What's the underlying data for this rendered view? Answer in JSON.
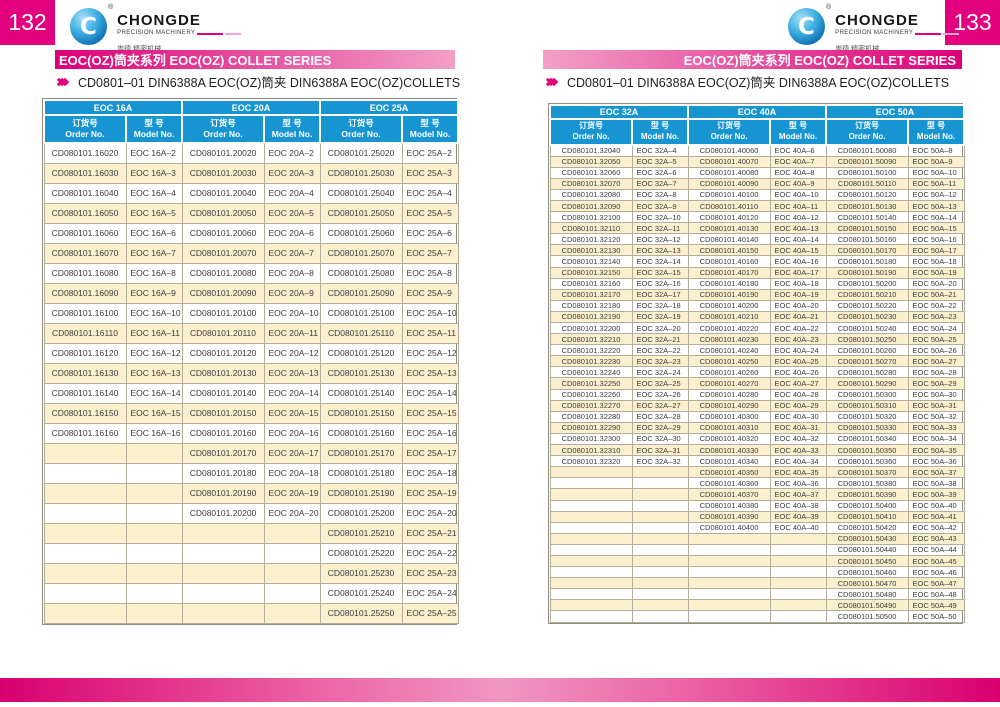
{
  "colors": {
    "magenta": "#e3007e",
    "pink_light": "#f2a0c6",
    "header_blue": "#1795d2",
    "row_cream": "#fbf0cd",
    "grid_gray": "#b3ae9c"
  },
  "logo": {
    "name": "CHONGDE",
    "registered": "®",
    "tagline": "PRECISION MACHINERY",
    "chinese": "崇德 精密机械"
  },
  "series_title": "EOC(OZ)筒夹系列  EOC(OZ) COLLET SERIES",
  "subtitle": "CD0801–01 DIN6388A EOC(OZ)筒夹 DIN6388A EOC(OZ)COLLETS",
  "col_headers": {
    "order_cn": "订货号",
    "order_en": "Order No.",
    "model_cn": "型 号",
    "model_en": "Model  No."
  },
  "pages": [
    {
      "page_number": "132",
      "groups": [
        "EOC 16A",
        "EOC 20A",
        "EOC 25A"
      ],
      "rows": [
        [
          "CD080101.16020",
          "EOC 16A–2",
          "CD080101.20020",
          "EOC 20A–2",
          "CD080101.25020",
          "EOC 25A–2"
        ],
        [
          "CD080101.16030",
          "EOC 16A–3",
          "CD080101.20030",
          "EOC 20A–3",
          "CD080101.25030",
          "EOC 25A–3"
        ],
        [
          "CD080101.16040",
          "EOC 16A–4",
          "CD080101.20040",
          "EOC 20A–4",
          "CD080101.25040",
          "EOC 25A–4"
        ],
        [
          "CD080101.16050",
          "EOC 16A–5",
          "CD080101.20050",
          "EOC 20A–5",
          "CD080101.25050",
          "EOC 25A–5"
        ],
        [
          "CD080101.16060",
          "EOC 16A–6",
          "CD080101.20060",
          "EOC 20A–6",
          "CD080101.25060",
          "EOC 25A–6"
        ],
        [
          "CD080101.16070",
          "EOC 16A–7",
          "CD080101.20070",
          "EOC 20A–7",
          "CD080101.25070",
          "EOC 25A–7"
        ],
        [
          "CD080101.16080",
          "EOC 16A–8",
          "CD080101.20080",
          "EOC 20A–8",
          "CD080101.25080",
          "EOC 25A–8"
        ],
        [
          "CD080101.16090",
          "EOC 16A–9",
          "CD080101.20090",
          "EOC 20A–9",
          "CD080101.25090",
          "EOC 25A–9"
        ],
        [
          "CD080101.16100",
          "EOC 16A–10",
          "CD080101.20100",
          "EOC 20A–10",
          "CD080101.25100",
          "EOC 25A–10"
        ],
        [
          "CD080101.16110",
          "EOC 16A–11",
          "CD080101.20110",
          "EOC 20A–11",
          "CD080101.25110",
          "EOC 25A–11"
        ],
        [
          "CD080101.16120",
          "EOC 16A–12",
          "CD080101.20120",
          "EOC 20A–12",
          "CD080101.25120",
          "EOC 25A–12"
        ],
        [
          "CD080101.16130",
          "EOC 16A–13",
          "CD080101.20130",
          "EOC 20A–13",
          "CD080101.25130",
          "EOC 25A–13"
        ],
        [
          "CD080101.16140",
          "EOC 16A–14",
          "CD080101.20140",
          "EOC 20A–14",
          "CD080101.25140",
          "EOC 25A–14"
        ],
        [
          "CD080101.16150",
          "EOC 16A–15",
          "CD080101.20150",
          "EOC 20A–15",
          "CD080101.25150",
          "EOC 25A–15"
        ],
        [
          "CD080101.16160",
          "EOC 16A–16",
          "CD080101.20160",
          "EOC 20A–16",
          "CD080101.25160",
          "EOC 25A–16"
        ],
        [
          "",
          "",
          "CD080101.20170",
          "EOC 20A–17",
          "CD080101.25170",
          "EOC 25A–17"
        ],
        [
          "",
          "",
          "CD080101.20180",
          "EOC 20A–18",
          "CD080101.25180",
          "EOC 25A–18"
        ],
        [
          "",
          "",
          "CD080101.20190",
          "EOC 20A–19",
          "CD080101.25190",
          "EOC 25A–19"
        ],
        [
          "",
          "",
          "CD080101.20200",
          "EOC 20A–20",
          "CD080101.25200",
          "EOC 25A–20"
        ],
        [
          "",
          "",
          "",
          "",
          "CD080101.25210",
          "EOC 25A–21"
        ],
        [
          "",
          "",
          "",
          "",
          "CD080101.25220",
          "EOC 25A–22"
        ],
        [
          "",
          "",
          "",
          "",
          "CD080101.25230",
          "EOC 25A–23"
        ],
        [
          "",
          "",
          "",
          "",
          "CD080101.25240",
          "EOC 25A–24"
        ],
        [
          "",
          "",
          "",
          "",
          "CD080101.25250",
          "EOC 25A–25"
        ]
      ]
    },
    {
      "page_number": "133",
      "groups": [
        "EOC 32A",
        "EOC 40A",
        "EOC 50A"
      ],
      "rows": [
        [
          "CD080101.32040",
          "EOC 32A–4",
          "CD080101.40060",
          "EOC 40A–6",
          "CD080101.50080",
          "EOC 50A–8"
        ],
        [
          "CD080101.32050",
          "EOC 32A–5",
          "CD080101.40070",
          "EOC 40A–7",
          "CD080101.50090",
          "EOC 50A–9"
        ],
        [
          "CD080101.32060",
          "EOC 32A–6",
          "CD080101.40080",
          "EOC 40A–8",
          "CD080101.50100",
          "EOC 50A–10"
        ],
        [
          "CD080101.32070",
          "EOC 32A–7",
          "CD080101.40090",
          "EOC 40A–9",
          "CD080101.50110",
          "EOC 50A–11"
        ],
        [
          "CD080101.32080",
          "EOC 32A–8",
          "CD080101.40100",
          "EOC 40A–10",
          "CD080101.50120",
          "EOC 50A–12"
        ],
        [
          "CD080101.32090",
          "EOC 32A–9",
          "CD080101.40110",
          "EOC 40A–11",
          "CD080101.50130",
          "EOC 50A–13"
        ],
        [
          "CD080101.32100",
          "EOC 32A–10",
          "CD080101.40120",
          "EOC 40A–12",
          "CD080101.50140",
          "EOC 50A–14"
        ],
        [
          "CD080101.32110",
          "EOC 32A–11",
          "CD080101.40130",
          "EOC 40A–13",
          "CD080101.50150",
          "EOC 50A–15"
        ],
        [
          "CD080101.32120",
          "EOC 32A–12",
          "CD080101.40140",
          "EOC 40A–14",
          "CD080101.50160",
          "EOC 50A–16"
        ],
        [
          "CD080101.32130",
          "EOC 32A–13",
          "CD080101.40150",
          "EOC 40A–15",
          "CD080101.50170",
          "EOC 50A–17"
        ],
        [
          "CD080101.32140",
          "EOC 32A–14",
          "CD080101.40160",
          "EOC 40A–16",
          "CD080101.50180",
          "EOC 50A–18"
        ],
        [
          "CD080101.32150",
          "EOC 32A–15",
          "CD080101.40170",
          "EOC 40A–17",
          "CD080101.50190",
          "EOC 50A–19"
        ],
        [
          "CD080101.32160",
          "EOC 32A–16",
          "CD080101.40180",
          "EOC 40A–18",
          "CD080101.50200",
          "EOC 50A–20"
        ],
        [
          "CD080101.32170",
          "EOC 32A–17",
          "CD080101.40190",
          "EOC 40A–19",
          "CD080101.50210",
          "EOC 50A–21"
        ],
        [
          "CD080101.32180",
          "EOC 32A–18",
          "CD080101.40200",
          "EOC 40A–20",
          "CD080101.50220",
          "EOC 50A–22"
        ],
        [
          "CD080101.32190",
          "EOC 32A–19",
          "CD080101.40210",
          "EOC 40A–21",
          "CD080101.50230",
          "EOC 50A–23"
        ],
        [
          "CD080101.32200",
          "EOC 32A–20",
          "CD080101.40220",
          "EOC 40A–22",
          "CD080101.50240",
          "EOC 50A–24"
        ],
        [
          "CD080101.32210",
          "EOC 32A–21",
          "CD080101.40230",
          "EOC 40A–23",
          "CD080101.50250",
          "EOC 50A–25"
        ],
        [
          "CD080101.32220",
          "EOC 32A–22",
          "CD080101.40240",
          "EOC 40A–24",
          "CD080101.50260",
          "EOC 50A–26"
        ],
        [
          "CD080101.32230",
          "EOC 32A–23",
          "CD080101.40250",
          "EOC 40A–25",
          "CD080101.50270",
          "EOC 50A–27"
        ],
        [
          "CD080101.32240",
          "EOC 32A–24",
          "CD080101.40260",
          "EOC 40A–26",
          "CD080101.50280",
          "EOC 50A–28"
        ],
        [
          "CD080101.32250",
          "EOC 32A–25",
          "CD080101.40270",
          "EOC 40A–27",
          "CD080101.50290",
          "EOC 50A–29"
        ],
        [
          "CD080101.32260",
          "EOC 32A–26",
          "CD080101.40280",
          "EOC 40A–28",
          "CD080101.50300",
          "EOC 50A–30"
        ],
        [
          "CD080101.32270",
          "EOC 32A–27",
          "CD080101.40290",
          "EOC 40A–29",
          "CD080101.50310",
          "EOC 50A–31"
        ],
        [
          "CD080101.32280",
          "EOC 32A–28",
          "CD080101.40300",
          "EOC 40A–30",
          "CD080101.50320",
          "EOC 50A–32"
        ],
        [
          "CD080101.32290",
          "EOC 32A–29",
          "CD080101.40310",
          "EOC 40A–31",
          "CD080101.50330",
          "EOC 50A–33"
        ],
        [
          "CD080101.32300",
          "EOC 32A–30",
          "CD080101.40320",
          "EOC 40A–32",
          "CD080101.50340",
          "EOC 50A–34"
        ],
        [
          "CD080101.32310",
          "EOC 32A–31",
          "CD080101.40330",
          "EOC 40A–33",
          "CD080101.50350",
          "EOC 50A–35"
        ],
        [
          "CD080101.32320",
          "EOC 32A–32",
          "CD080101.40340",
          "EOC 40A–34",
          "CD080101.50360",
          "EOC 50A–36"
        ],
        [
          "",
          "",
          "CD080101.40350",
          "EOC 40A–35",
          "CD080101.50370",
          "EOC 50A–37"
        ],
        [
          "",
          "",
          "CD080101.40360",
          "EOC 40A–36",
          "CD080101.50380",
          "EOC 50A–38"
        ],
        [
          "",
          "",
          "CD080101.40370",
          "EOC 40A–37",
          "CD080101.50390",
          "EOC 50A–39"
        ],
        [
          "",
          "",
          "CD080101.40380",
          "EOC 40A–38",
          "CD080101.50400",
          "EOC 50A–40"
        ],
        [
          "",
          "",
          "CD080101.40390",
          "EOC 40A–39",
          "CD080101.50410",
          "EOC 50A–41"
        ],
        [
          "",
          "",
          "CD080101.40400",
          "EOC 40A–40",
          "CD080101.50420",
          "EOC 50A–42"
        ],
        [
          "",
          "",
          "",
          "",
          "CD080101.50430",
          "EOC 50A–43"
        ],
        [
          "",
          "",
          "",
          "",
          "CD080101.50440",
          "EOC 50A–44"
        ],
        [
          "",
          "",
          "",
          "",
          "CD080101.50450",
          "EOC 50A–45"
        ],
        [
          "",
          "",
          "",
          "",
          "CD080101.50460",
          "EOC 50A–46"
        ],
        [
          "",
          "",
          "",
          "",
          "CD080101.50470",
          "EOC 50A–47"
        ],
        [
          "",
          "",
          "",
          "",
          "CD080101.50480",
          "EOC 50A–48"
        ],
        [
          "",
          "",
          "",
          "",
          "CD080101.50490",
          "EOC 50A–49"
        ],
        [
          "",
          "",
          "",
          "",
          "CD080101.50500",
          "EOC 50A–50"
        ]
      ]
    }
  ]
}
